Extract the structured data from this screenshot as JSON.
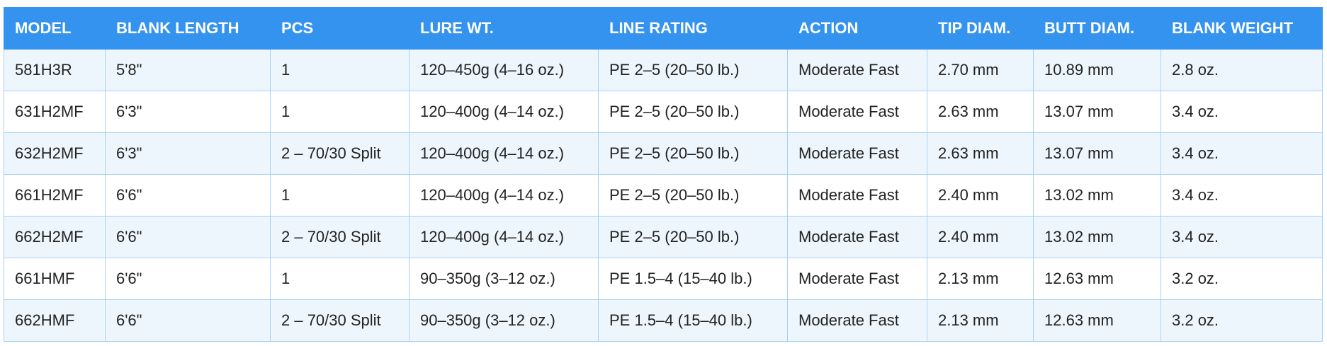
{
  "table": {
    "header": [
      "MODEL",
      "BLANK LENGTH",
      "PCS",
      "LURE WT.",
      "LINE RATING",
      "ACTION",
      "TIP DIAM.",
      "BUTT DIAM.",
      "BLANK WEIGHT"
    ],
    "rows": [
      [
        "581H3R",
        "5'8\"",
        "1",
        "120–450g (4–16 oz.)",
        "PE 2–5 (20–50 lb.)",
        "Moderate Fast",
        "2.70 mm",
        "10.89 mm",
        "2.8 oz."
      ],
      [
        "631H2MF",
        "6'3\"",
        "1",
        "120–400g (4–14 oz.)",
        "PE 2–5 (20–50 lb.)",
        "Moderate Fast",
        "2.63 mm",
        "13.07 mm",
        "3.4 oz."
      ],
      [
        "632H2MF",
        "6'3\"",
        "2 – 70/30 Split",
        "120–400g (4–14 oz.)",
        "PE 2–5 (20–50 lb.)",
        "Moderate Fast",
        "2.63 mm",
        "13.07 mm",
        "3.4 oz."
      ],
      [
        "661H2MF",
        "6'6\"",
        "1",
        "120–400g (4–14 oz.)",
        "PE 2–5 (20–50 lb.)",
        "Moderate Fast",
        "2.40 mm",
        "13.02 mm",
        "3.4 oz."
      ],
      [
        "662H2MF",
        "6'6\"",
        "2 – 70/30 Split",
        "120–400g (4–14 oz.)",
        "PE 2–5 (20–50 lb.)",
        "Moderate Fast",
        "2.40 mm",
        "13.02 mm",
        "3.4 oz."
      ],
      [
        "661HMF",
        "6'6\"",
        "1",
        "90–350g (3–12 oz.)",
        "PE 1.5–4 (15–40 lb.)",
        "Moderate Fast",
        "2.13 mm",
        "12.63 mm",
        "3.2 oz."
      ],
      [
        "662HMF",
        "6'6\"",
        "2 – 70/30 Split",
        "90–350g (3–12 oz.)",
        "PE 1.5–4 (15–40 lb.)",
        "Moderate Fast",
        "2.13 mm",
        "12.63 mm",
        "3.2 oz."
      ]
    ]
  }
}
